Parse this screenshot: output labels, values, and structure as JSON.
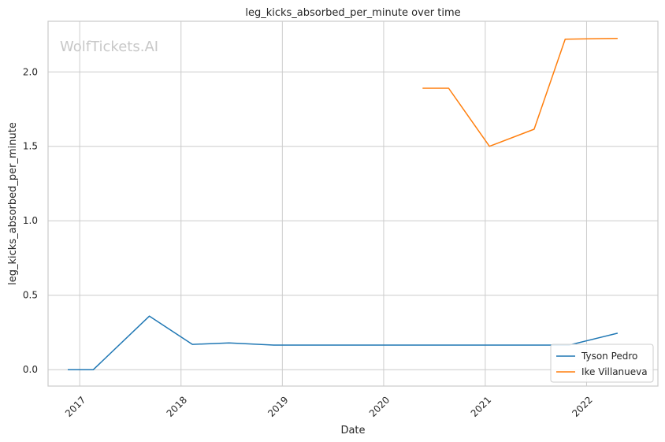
{
  "chart_data": {
    "type": "line",
    "title": "leg_kicks_absorbed_per_minute over time",
    "xlabel": "Date",
    "ylabel": "leg_kicks_absorbed_per_minute",
    "watermark": "WolfTickets.AI",
    "xlim": [
      "2016-09-09",
      "2022-09-15"
    ],
    "ylim": [
      -0.11,
      2.34
    ],
    "x_ticks": [
      "2017",
      "2018",
      "2019",
      "2020",
      "2021",
      "2022"
    ],
    "y_ticks": [
      "0.0",
      "0.5",
      "1.0",
      "1.5",
      "2.0"
    ],
    "grid": true,
    "legend_position": "lower right",
    "series": [
      {
        "name": "Tyson Pedro",
        "color": "#1f77b4",
        "points": [
          {
            "x": "2016-11-19",
            "y": 0.0
          },
          {
            "x": "2017-02-19",
            "y": 0.0
          },
          {
            "x": "2017-09-09",
            "y": 0.36
          },
          {
            "x": "2018-02-11",
            "y": 0.17
          },
          {
            "x": "2018-06-23",
            "y": 0.18
          },
          {
            "x": "2018-12-01",
            "y": 0.165
          },
          {
            "x": "2021-10-30",
            "y": 0.165
          },
          {
            "x": "2022-04-23",
            "y": 0.245
          }
        ]
      },
      {
        "name": "Ike Villanueva",
        "color": "#ff7f0e",
        "points": [
          {
            "x": "2020-05-20",
            "y": 1.89
          },
          {
            "x": "2020-08-22",
            "y": 1.89
          },
          {
            "x": "2021-01-16",
            "y": 1.5
          },
          {
            "x": "2021-06-26",
            "y": 1.615
          },
          {
            "x": "2021-10-16",
            "y": 2.22
          },
          {
            "x": "2022-04-23",
            "y": 2.225
          }
        ]
      }
    ]
  }
}
